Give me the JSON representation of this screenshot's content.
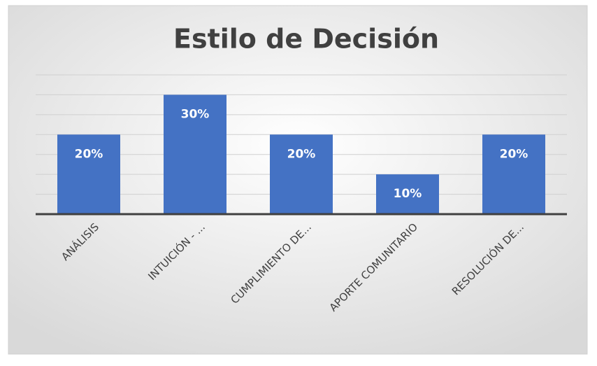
{
  "chart_data": {
    "type": "bar",
    "title": "Estilo de Decisión",
    "categories": [
      "ANÁLISIS",
      "INTUICIÓN - ...",
      "CUMPLIMIENTO DE...",
      "APORTE COMUNITARIO",
      "RESOLUCIÓN DE..."
    ],
    "values": [
      20,
      30,
      20,
      10,
      20
    ],
    "value_labels": [
      "20%",
      "30%",
      "20%",
      "10%",
      "20%"
    ],
    "color": "#4472c4",
    "ylim": [
      0,
      35
    ],
    "yticks": [
      0,
      5,
      10,
      15,
      20,
      25,
      30,
      35
    ],
    "grid": true
  }
}
